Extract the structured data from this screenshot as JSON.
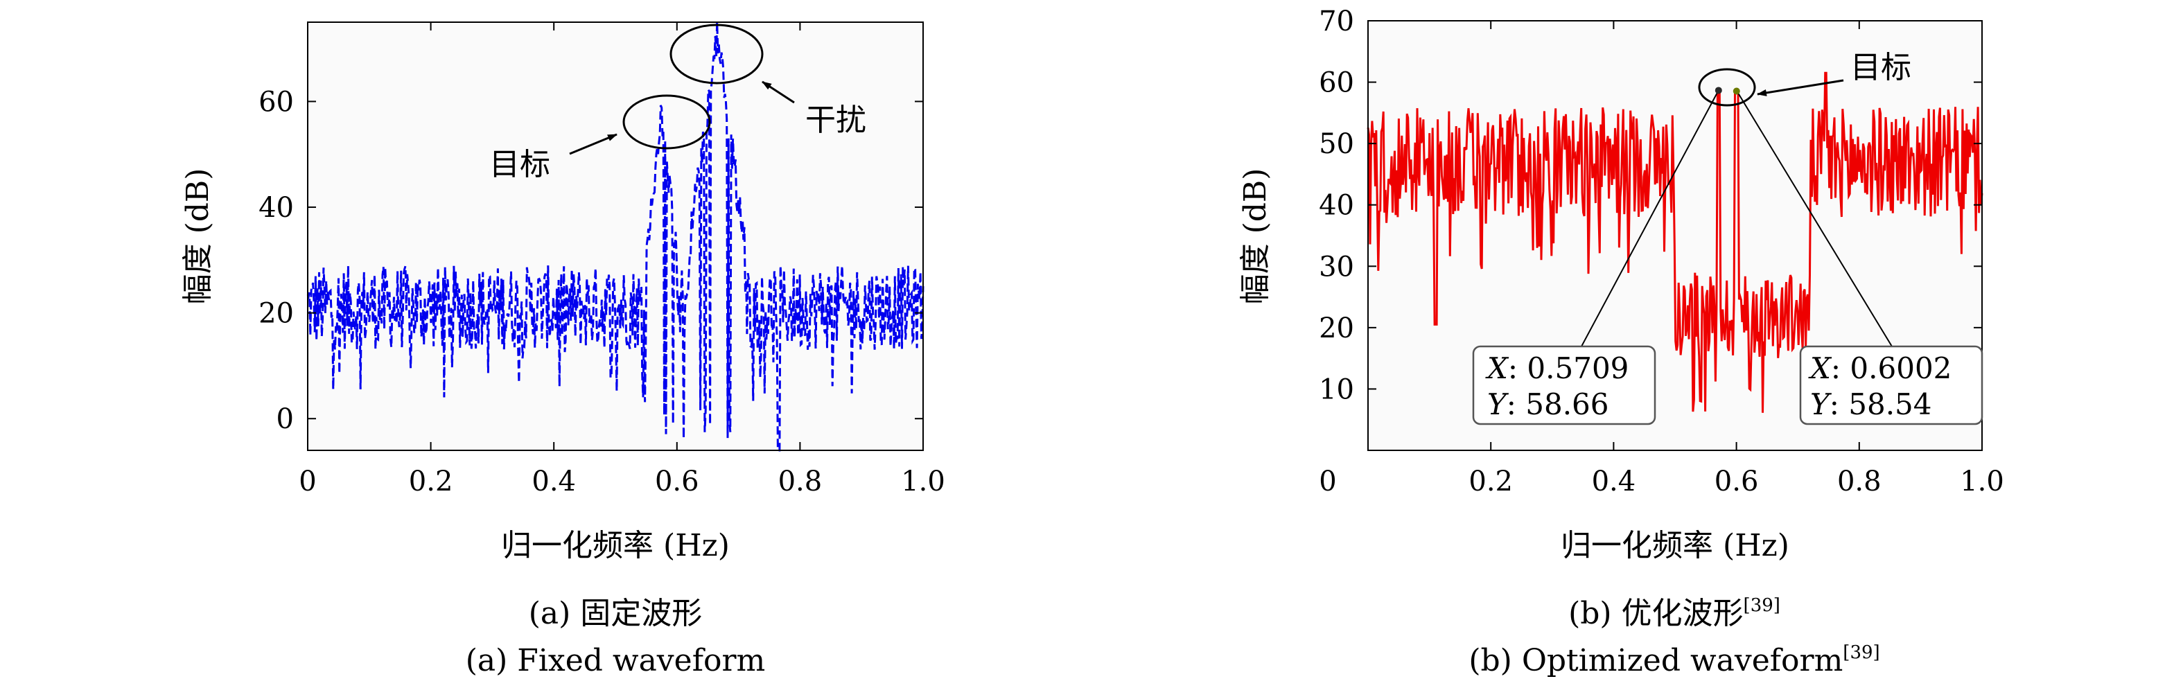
{
  "chart_data": [
    {
      "type": "line",
      "panel": "a",
      "xlabel": "归一化频率 (Hz)",
      "ylabel": "幅度 (dB)",
      "xlim": [
        0,
        1.0
      ],
      "ylim": [
        -6,
        75
      ],
      "x_ticks": [
        "0",
        "0.2",
        "0.4",
        "0.6",
        "0.8",
        "1.0"
      ],
      "y_ticks": [
        "0",
        "20",
        "40",
        "60"
      ],
      "color": "#0000ee",
      "line_style": "dashed",
      "caption_cn": "(a) 固定波形",
      "caption_en": "(a) Fixed waveform",
      "annotations": {
        "target": "目标",
        "interference": "干扰"
      },
      "features": {
        "baseline_db": 21,
        "target_x": 0.575,
        "target_peak_db": 58,
        "interference_x": 0.665,
        "interference_peak_db": 73
      }
    },
    {
      "type": "line",
      "panel": "b",
      "xlabel": "归一化频率 (Hz)",
      "ylabel": "幅度 (dB)",
      "xlim": [
        0,
        1.0
      ],
      "ylim": [
        0,
        70
      ],
      "x_ticks": [
        "0",
        "0.2",
        "0.4",
        "0.6",
        "0.8",
        "1.0"
      ],
      "y_ticks": [
        "10",
        "20",
        "30",
        "40",
        "50",
        "60",
        "70"
      ],
      "color": "#ee0000",
      "line_style": "solid",
      "caption_cn": "(b) 优化波形",
      "caption_en": "(b) Optimized waveform",
      "caption_ref": "[39]",
      "annotations": {
        "target": "目标"
      },
      "datatips": [
        {
          "x": 0.5709,
          "y": 58.66,
          "x_text": "0.5709",
          "y_text": "58.66"
        },
        {
          "x": 0.6002,
          "y": 58.54,
          "x_text": "0.6002",
          "y_text": "58.54"
        }
      ],
      "features": {
        "baseline_db": 47,
        "notch_start": 0.5,
        "notch_end": 0.72,
        "notch_db": 22
      }
    }
  ]
}
